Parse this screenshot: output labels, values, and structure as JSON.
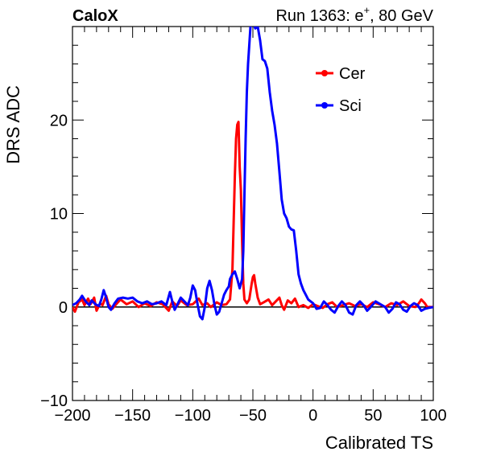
{
  "header": {
    "experiment": "CaloX",
    "run_prefix": "Run 1363: e",
    "run_sup": "+",
    "run_suffix": ", 80 GeV"
  },
  "chart_data": {
    "type": "line",
    "xlabel": "Calibrated TS",
    "ylabel": "DRS ADC",
    "xlim": [
      -200,
      100
    ],
    "ylim": [
      -10,
      30
    ],
    "x_ticks": [
      -200,
      -150,
      -100,
      -50,
      0,
      50,
      100
    ],
    "x_tick_labels": [
      "−200",
      "−150",
      "−100",
      "−50",
      "0",
      "50",
      "100"
    ],
    "y_ticks": [
      -10,
      0,
      10,
      20
    ],
    "y_tick_labels": [
      "−10",
      "0",
      "10",
      "20"
    ],
    "baseline": 0,
    "legend_position": "top-right",
    "grid": false,
    "series": [
      {
        "name": "Cer",
        "color": "#ff0000",
        "points": [
          [
            -200,
            0.0
          ],
          [
            -198,
            -0.5
          ],
          [
            -195,
            0.5
          ],
          [
            -192,
            0.8
          ],
          [
            -190,
            0.2
          ],
          [
            -187,
            0.9
          ],
          [
            -185,
            0.3
          ],
          [
            -182,
            1.0
          ],
          [
            -180,
            -0.4
          ],
          [
            -177,
            0.4
          ],
          [
            -175,
            0.2
          ],
          [
            -172,
            1.2
          ],
          [
            -170,
            0.3
          ],
          [
            -167,
            -0.2
          ],
          [
            -163,
            0.4
          ],
          [
            -160,
            0.8
          ],
          [
            -155,
            0.3
          ],
          [
            -150,
            0.6
          ],
          [
            -145,
            0.0
          ],
          [
            -140,
            0.4
          ],
          [
            -135,
            0.1
          ],
          [
            -130,
            0.5
          ],
          [
            -125,
            0.3
          ],
          [
            -120,
            -0.4
          ],
          [
            -117,
            0.6
          ],
          [
            -113,
            0.1
          ],
          [
            -110,
            0.7
          ],
          [
            -105,
            0.2
          ],
          [
            -100,
            0.3
          ],
          [
            -95,
            0.9
          ],
          [
            -92,
            0.2
          ],
          [
            -88,
            0.4
          ],
          [
            -85,
            0.0
          ],
          [
            -80,
            0.5
          ],
          [
            -76,
            0.2
          ],
          [
            -72,
            0.3
          ],
          [
            -69,
            0.8
          ],
          [
            -67,
            4.0
          ],
          [
            -66,
            9.0
          ],
          [
            -65,
            14.0
          ],
          [
            -64,
            18.0
          ],
          [
            -63,
            19.5
          ],
          [
            -62,
            19.8
          ],
          [
            -61,
            15.0
          ],
          [
            -60,
            12.5
          ],
          [
            -59,
            7.0
          ],
          [
            -58,
            2.5
          ],
          [
            -57,
            0.8
          ],
          [
            -55,
            0.4
          ],
          [
            -53,
            0.8
          ],
          [
            -51,
            2.5
          ],
          [
            -50,
            3.2
          ],
          [
            -49,
            3.4
          ],
          [
            -48,
            2.5
          ],
          [
            -46,
            1.0
          ],
          [
            -44,
            0.3
          ],
          [
            -41,
            0.5
          ],
          [
            -37,
            0.8
          ],
          [
            -34,
            0.2
          ],
          [
            -31,
            0.6
          ],
          [
            -28,
            1.0
          ],
          [
            -26,
            0.2
          ],
          [
            -24,
            -0.3
          ],
          [
            -21,
            0.7
          ],
          [
            -18,
            0.4
          ],
          [
            -15,
            0.9
          ],
          [
            -12,
            0.0
          ],
          [
            -8,
            0.2
          ],
          [
            -4,
            -0.1
          ],
          [
            0,
            0.3
          ],
          [
            4,
            0.1
          ],
          [
            8,
            -0.1
          ],
          [
            12,
            0.3
          ],
          [
            16,
            0.5
          ],
          [
            20,
            0.0
          ],
          [
            25,
            0.2
          ],
          [
            30,
            0.4
          ],
          [
            35,
            0.1
          ],
          [
            40,
            0.3
          ],
          [
            45,
            0.0
          ],
          [
            50,
            0.5
          ],
          [
            55,
            0.3
          ],
          [
            60,
            0.0
          ],
          [
            65,
            0.4
          ],
          [
            70,
            0.2
          ],
          [
            75,
            0.6
          ],
          [
            80,
            0.1
          ],
          [
            85,
            0.0
          ],
          [
            88,
            0.4
          ],
          [
            90,
            0.8
          ],
          [
            93,
            0.4
          ],
          [
            95,
            0.0
          ],
          [
            100,
            0.0
          ]
        ]
      },
      {
        "name": "Sci",
        "color": "#0000ff",
        "points": [
          [
            -200,
            0.2
          ],
          [
            -197,
            0.4
          ],
          [
            -194,
            0.8
          ],
          [
            -192,
            1.2
          ],
          [
            -189,
            0.6
          ],
          [
            -186,
            0.2
          ],
          [
            -184,
            0.7
          ],
          [
            -181,
            0.3
          ],
          [
            -178,
            0.1
          ],
          [
            -176,
            0.8
          ],
          [
            -174,
            1.8
          ],
          [
            -172,
            1.0
          ],
          [
            -170,
            0.0
          ],
          [
            -168,
            -0.3
          ],
          [
            -165,
            0.4
          ],
          [
            -162,
            0.9
          ],
          [
            -158,
            1.0
          ],
          [
            -154,
            0.9
          ],
          [
            -150,
            1.0
          ],
          [
            -146,
            0.6
          ],
          [
            -142,
            0.4
          ],
          [
            -138,
            0.6
          ],
          [
            -134,
            0.3
          ],
          [
            -130,
            0.4
          ],
          [
            -126,
            0.6
          ],
          [
            -122,
            0.2
          ],
          [
            -119,
            1.6
          ],
          [
            -117,
            0.6
          ],
          [
            -115,
            -0.3
          ],
          [
            -113,
            0.2
          ],
          [
            -110,
            1.0
          ],
          [
            -107,
            0.6
          ],
          [
            -104,
            0.2
          ],
          [
            -102,
            1.0
          ],
          [
            -100,
            2.3
          ],
          [
            -98,
            1.8
          ],
          [
            -96,
            0.3
          ],
          [
            -94,
            -1.0
          ],
          [
            -92,
            -1.3
          ],
          [
            -90,
            0.0
          ],
          [
            -88,
            2.0
          ],
          [
            -86,
            2.8
          ],
          [
            -84,
            1.8
          ],
          [
            -82,
            0.3
          ],
          [
            -80,
            -0.8
          ],
          [
            -78,
            -0.5
          ],
          [
            -76,
            0.4
          ],
          [
            -74,
            1.3
          ],
          [
            -72,
            1.8
          ],
          [
            -70,
            2.2
          ],
          [
            -69,
            3.0
          ],
          [
            -67,
            3.5
          ],
          [
            -65,
            3.8
          ],
          [
            -63,
            3.0
          ],
          [
            -61,
            2.0
          ],
          [
            -59,
            3.0
          ],
          [
            -58,
            6.0
          ],
          [
            -57,
            12.0
          ],
          [
            -56,
            18.0
          ],
          [
            -55,
            23.0
          ],
          [
            -54,
            26.0
          ],
          [
            -53,
            28.0
          ],
          [
            -52,
            30.0
          ],
          [
            -50,
            30.5
          ],
          [
            -48,
            29.8
          ],
          [
            -46,
            30.0
          ],
          [
            -44,
            28.5
          ],
          [
            -42,
            26.5
          ],
          [
            -40,
            26.3
          ],
          [
            -38,
            25.5
          ],
          [
            -36,
            23.0
          ],
          [
            -34,
            21.0
          ],
          [
            -32,
            19.5
          ],
          [
            -30,
            17.5
          ],
          [
            -28,
            14.5
          ],
          [
            -26,
            11.5
          ],
          [
            -24,
            10.0
          ],
          [
            -22,
            9.5
          ],
          [
            -20,
            8.6
          ],
          [
            -18,
            8.3
          ],
          [
            -16,
            8.2
          ],
          [
            -14,
            6.0
          ],
          [
            -12,
            3.5
          ],
          [
            -10,
            2.5
          ],
          [
            -8,
            1.8
          ],
          [
            -6,
            1.3
          ],
          [
            -4,
            0.8
          ],
          [
            -2,
            0.6
          ],
          [
            0,
            0.4
          ],
          [
            3,
            -0.2
          ],
          [
            6,
            -0.1
          ],
          [
            9,
            0.6
          ],
          [
            12,
            0.2
          ],
          [
            15,
            -0.3
          ],
          [
            18,
            -0.6
          ],
          [
            21,
            0.1
          ],
          [
            24,
            0.6
          ],
          [
            27,
            0.2
          ],
          [
            30,
            -0.6
          ],
          [
            33,
            -0.8
          ],
          [
            36,
            0.2
          ],
          [
            39,
            0.6
          ],
          [
            42,
            0.2
          ],
          [
            45,
            -0.4
          ],
          [
            48,
            0.0
          ],
          [
            52,
            0.6
          ],
          [
            56,
            0.3
          ],
          [
            60,
            0.0
          ],
          [
            63,
            -0.6
          ],
          [
            66,
            -0.2
          ],
          [
            69,
            0.5
          ],
          [
            72,
            0.3
          ],
          [
            75,
            -0.3
          ],
          [
            78,
            -0.5
          ],
          [
            81,
            0.1
          ],
          [
            84,
            0.4
          ],
          [
            87,
            0.2
          ],
          [
            90,
            -0.4
          ],
          [
            93,
            -0.2
          ],
          [
            96,
            -0.1
          ],
          [
            100,
            0.0
          ]
        ]
      }
    ]
  }
}
